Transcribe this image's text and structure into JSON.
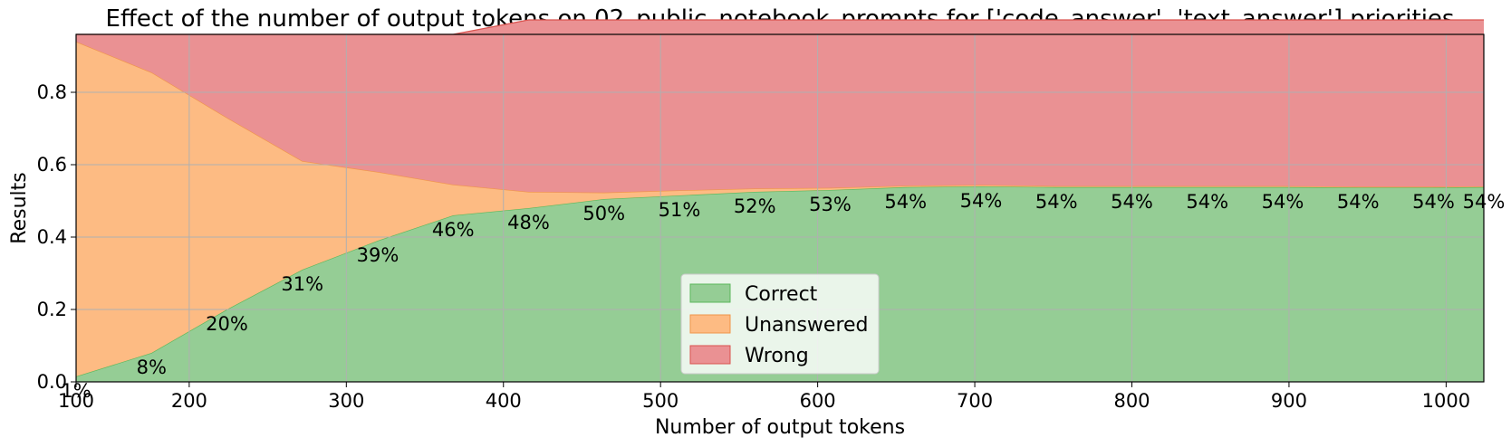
{
  "chart_data": {
    "type": "area",
    "stacked": true,
    "normalized": true,
    "title": "Effect of the number of output tokens on 02_public_notebook_prompts for ['code_answer', 'text_answer'] priorities",
    "xlabel": "Number of output tokens",
    "ylabel": "Results",
    "xlim": [
      128,
      1024
    ],
    "ylim": [
      0,
      0.96
    ],
    "xticks": [
      100,
      200,
      300,
      400,
      500,
      600,
      700,
      800,
      900,
      1000
    ],
    "xtick_labels": [
      "100",
      "200",
      "300",
      "400",
      "500",
      "600",
      "700",
      "800",
      "900",
      "1000"
    ],
    "yticks": [
      0.0,
      0.2,
      0.4,
      0.6,
      0.8
    ],
    "ytick_labels": [
      "0.0",
      "0.2",
      "0.4",
      "0.6",
      "0.8"
    ],
    "grid": true,
    "legend_position": "bottom-center",
    "x": [
      128,
      176,
      224,
      272,
      320,
      368,
      416,
      464,
      512,
      560,
      608,
      656,
      704,
      752,
      800,
      848,
      896,
      944,
      992,
      1024
    ],
    "series": [
      {
        "name": "Correct",
        "color": "#95cd95",
        "edge_color": "#5cb85c",
        "values": [
          0.015,
          0.08,
          0.2,
          0.31,
          0.39,
          0.46,
          0.48,
          0.505,
          0.515,
          0.525,
          0.53,
          0.538,
          0.54,
          0.538,
          0.538,
          0.538,
          0.538,
          0.537,
          0.537,
          0.538
        ]
      },
      {
        "name": "Unanswered",
        "color": "#fdbb83",
        "edge_color": "#f0954a",
        "values": [
          0.925,
          0.775,
          0.53,
          0.3,
          0.19,
          0.085,
          0.045,
          0.018,
          0.014,
          0.009,
          0.006,
          0.004,
          0.004,
          0.003,
          0.003,
          0.003,
          0.003,
          0.002,
          0.002,
          0.002
        ]
      },
      {
        "name": "Wrong",
        "color": "#ea9193",
        "edge_color": "#d9534f",
        "values": [
          0.02,
          0.105,
          0.23,
          0.35,
          0.38,
          0.415,
          0.475,
          0.477,
          0.471,
          0.466,
          0.464,
          0.458,
          0.456,
          0.459,
          0.459,
          0.459,
          0.459,
          0.461,
          0.461,
          0.46
        ]
      }
    ],
    "data_labels": [
      "1%",
      "8%",
      "20%",
      "31%",
      "39%",
      "46%",
      "48%",
      "50%",
      "51%",
      "52%",
      "53%",
      "54%",
      "54%",
      "54%",
      "54%",
      "54%",
      "54%",
      "54%",
      "54%",
      "54%"
    ]
  }
}
